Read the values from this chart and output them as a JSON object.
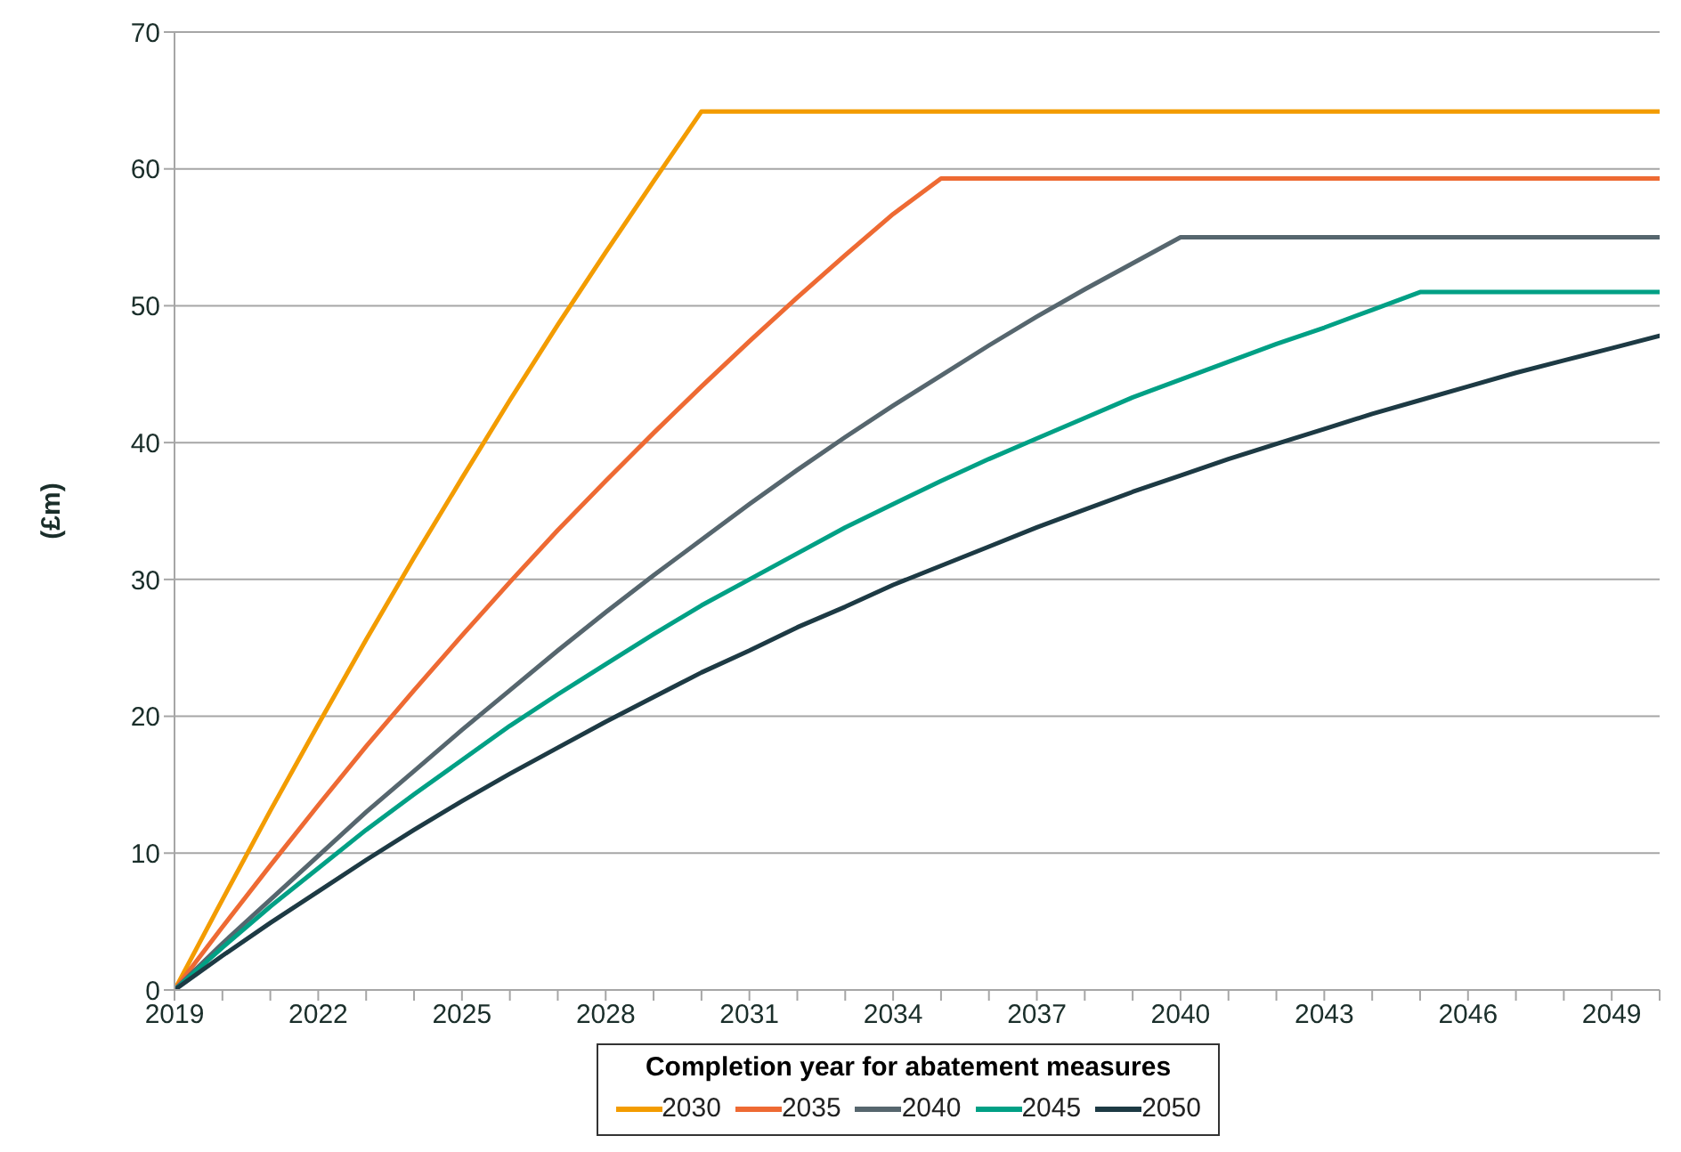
{
  "chart_data": {
    "type": "line",
    "ylabel": "(£m)",
    "legend_title": "Completion year for abatement measures",
    "x": [
      2019,
      2020,
      2021,
      2022,
      2023,
      2024,
      2025,
      2026,
      2027,
      2028,
      2029,
      2030,
      2031,
      2032,
      2033,
      2034,
      2035,
      2036,
      2037,
      2038,
      2039,
      2040,
      2041,
      2042,
      2043,
      2044,
      2045,
      2046,
      2047,
      2048,
      2049,
      2050
    ],
    "series": [
      {
        "name": "2030",
        "color": "#f39c00",
        "values": [
          0,
          6.6,
          13.1,
          19.4,
          25.6,
          31.6,
          37.4,
          43.1,
          48.6,
          53.9,
          59.1,
          64.2,
          64.2,
          64.2,
          64.2,
          64.2,
          64.2,
          64.2,
          64.2,
          64.2,
          64.2,
          64.2,
          64.2,
          64.2,
          64.2,
          64.2,
          64.2,
          64.2,
          64.2,
          64.2,
          64.2,
          64.2
        ]
      },
      {
        "name": "2035",
        "color": "#ee6a33",
        "values": [
          0,
          4.6,
          9.1,
          13.5,
          17.8,
          21.9,
          25.9,
          29.8,
          33.6,
          37.2,
          40.7,
          44.1,
          47.4,
          50.6,
          53.7,
          56.7,
          59.3,
          59.3,
          59.3,
          59.3,
          59.3,
          59.3,
          59.3,
          59.3,
          59.3,
          59.3,
          59.3,
          59.3,
          59.3,
          59.3,
          59.3,
          59.3
        ]
      },
      {
        "name": "2040",
        "color": "#56666e",
        "values": [
          0,
          3.4,
          6.6,
          9.8,
          13.0,
          16.0,
          19.0,
          21.9,
          24.8,
          27.6,
          30.3,
          32.9,
          35.5,
          38.0,
          40.4,
          42.7,
          44.9,
          47.1,
          49.2,
          51.2,
          53.1,
          55.0,
          55.0,
          55.0,
          55.0,
          55.0,
          55.0,
          55.0,
          55.0,
          55.0,
          55.0,
          55.0
        ]
      },
      {
        "name": "2045",
        "color": "#00a085",
        "values": [
          0,
          3.1,
          6.1,
          8.9,
          11.7,
          14.3,
          16.8,
          19.3,
          21.6,
          23.8,
          26.0,
          28.1,
          30.0,
          31.9,
          33.8,
          35.5,
          37.2,
          38.8,
          40.3,
          41.8,
          43.3,
          44.6,
          45.9,
          47.2,
          48.4,
          49.7,
          51.0,
          51.0,
          51.0,
          51.0,
          51.0,
          51.0
        ]
      },
      {
        "name": "2050",
        "color": "#1d3a44",
        "values": [
          0,
          2.5,
          4.9,
          7.2,
          9.5,
          11.7,
          13.8,
          15.8,
          17.7,
          19.6,
          21.4,
          23.2,
          24.8,
          26.5,
          28.0,
          29.6,
          31.0,
          32.4,
          33.8,
          35.1,
          36.4,
          37.6,
          38.8,
          39.9,
          41.0,
          42.1,
          43.1,
          44.1,
          45.1,
          46.0,
          46.9,
          47.8
        ]
      }
    ],
    "xlim": [
      2019,
      2050
    ],
    "xticks": [
      2019,
      {
        "value": 2020,
        "label": null
      },
      {
        "value": 2021,
        "label": null
      },
      2022,
      {
        "value": 2023,
        "label": null
      },
      {
        "value": 2024,
        "label": null
      },
      2025,
      {
        "value": 2026,
        "label": null
      },
      {
        "value": 2027,
        "label": null
      },
      2028,
      {
        "value": 2029,
        "label": null
      },
      {
        "value": 2030,
        "label": null
      },
      2031,
      {
        "value": 2032,
        "label": null
      },
      {
        "value": 2033,
        "label": null
      },
      2034,
      {
        "value": 2035,
        "label": null
      },
      {
        "value": 2036,
        "label": null
      },
      2037,
      {
        "value": 2038,
        "label": null
      },
      {
        "value": 2039,
        "label": null
      },
      2040,
      {
        "value": 2041,
        "label": null
      },
      {
        "value": 2042,
        "label": null
      },
      2043,
      {
        "value": 2044,
        "label": null
      },
      {
        "value": 2045,
        "label": null
      },
      2046,
      {
        "value": 2047,
        "label": null
      },
      {
        "value": 2048,
        "label": null
      },
      2049,
      {
        "value": 2050,
        "label": null
      }
    ],
    "ylim": [
      0,
      70
    ],
    "yticks": [
      0,
      10,
      20,
      30,
      40,
      50,
      60,
      70
    ],
    "grid": "y",
    "legend": "bottom",
    "marker": "none",
    "line_style": "solid"
  }
}
